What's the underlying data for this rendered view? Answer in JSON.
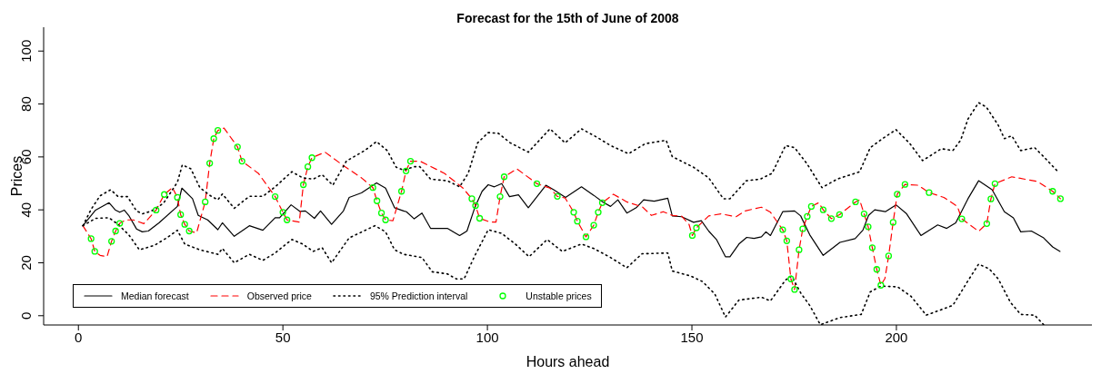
{
  "chart_data": {
    "type": "line",
    "title": "Forecast for the 15th of June of 2008",
    "xlabel": "Hours ahead",
    "ylabel": "Prices",
    "xlim": [
      -8.5,
      247.8
    ],
    "xticks": [
      0,
      50,
      100,
      150,
      200
    ],
    "ylim": [
      -3.5,
      109
    ],
    "yticks": [
      0,
      20,
      40,
      60,
      80,
      100
    ],
    "grid": false,
    "legend": "bottom left",
    "series": [
      {
        "name": "Median forecast",
        "color": "#000000",
        "line_style": "solid",
        "marker": "none",
        "x": [
          1.1,
          4.2,
          7.5,
          9.0,
          10.1,
          11.2,
          12.3,
          14.2,
          15.6,
          17.1,
          19.7,
          24.2,
          25.3,
          27.9,
          29.3,
          31.6,
          34.1,
          35.2,
          38.1,
          41.8,
          45.1,
          48.1,
          49.2,
          52.0,
          54.2,
          55.5,
          57.7,
          59.2,
          61.9,
          64.8,
          66.2,
          69.2,
          72.9,
          75.1,
          77.3,
          79.5,
          80.2,
          82.1,
          84.0,
          86.1,
          90.2,
          93.2,
          95.0,
          96.9,
          98.7,
          100.2,
          101.7,
          103.5,
          105.4,
          107.6,
          110.0,
          114.3,
          116.2,
          119.1,
          123.0,
          126.0,
          128.2,
          130.1,
          131.9,
          134.1,
          136.4,
          138.2,
          140.8,
          144.1,
          145.2,
          147.5,
          150.4,
          152.3,
          154.1,
          156.0,
          158.2,
          159.3,
          161.5,
          163.4,
          165.2,
          167.0,
          168.1,
          169.2,
          172.2,
          175.1,
          176.6,
          178.8,
          182.1,
          186.2,
          189.9,
          191.8,
          193.2,
          194.7,
          197.3,
          199.9,
          202.5,
          206.0,
          210.1,
          212.3,
          214.5,
          217.5,
          220.1,
          223.4,
          226.4,
          228.6,
          230.4,
          233.0,
          236.0,
          238.2,
          240.0
        ],
        "values": [
          34.0,
          39.9,
          42.7,
          40.0,
          39.1,
          39.9,
          37.9,
          32.8,
          31.7,
          32.0,
          35.1,
          41.3,
          48.2,
          44.2,
          37.9,
          36.2,
          32.5,
          35.1,
          30.0,
          34.0,
          32.3,
          37.0,
          37.0,
          41.9,
          39.4,
          39.6,
          36.8,
          39.6,
          34.5,
          39.6,
          44.7,
          46.4,
          50.2,
          48.2,
          40.8,
          39.6,
          39.3,
          36.6,
          38.8,
          33.0,
          33.0,
          30.3,
          32.0,
          40.8,
          47.0,
          49.5,
          48.7,
          49.9,
          45.0,
          45.7,
          40.8,
          49.3,
          47.6,
          44.7,
          48.7,
          45.5,
          43.0,
          41.3,
          43.8,
          38.8,
          40.8,
          43.8,
          43.3,
          44.4,
          37.7,
          37.4,
          35.3,
          35.9,
          32.0,
          28.8,
          22.3,
          22.3,
          27.1,
          29.6,
          29.2,
          29.8,
          31.7,
          30.3,
          39.3,
          39.6,
          37.7,
          30.6,
          22.8,
          27.7,
          29.1,
          32.3,
          37.9,
          40.0,
          39.3,
          41.9,
          38.5,
          30.3,
          34.3,
          33.0,
          35.1,
          44.2,
          51.0,
          47.6,
          39.3,
          37.0,
          31.7,
          32.0,
          29.4,
          26.0,
          24.3
        ]
      },
      {
        "name": "Observed price",
        "color": "#ff0000",
        "line_style": "dashed",
        "marker": "none",
        "x": [
          1.1,
          3.1,
          4.0,
          5.3,
          7.0,
          8.1,
          9.1,
          10.1,
          11.6,
          13.4,
          16.0,
          19.0,
          21.0,
          23.0,
          24.2,
          25.0,
          26.0,
          27.1,
          28.9,
          31.0,
          32.1,
          33.1,
          34.1,
          35.6,
          38.9,
          40.0,
          44.0,
          48.1,
          50.0,
          51.0,
          54.0,
          55.0,
          56.1,
          57.1,
          60.3,
          64.8,
          69.2,
          72.0,
          73.0,
          74.1,
          75.1,
          76.9,
          79.0,
          80.1,
          81.2,
          83.5,
          89.5,
          93.9,
          96.2,
          97.1,
          98.1,
          100.6,
          102.1,
          103.1,
          104.1,
          107.2,
          112.1,
          115.3,
          117.1,
          119.0,
          121.1,
          122.0,
          124.1,
          126.0,
          127.1,
          128.1,
          130.8,
          134.1,
          137.9,
          140.1,
          143.0,
          145.2,
          147.5,
          149.3,
          150.1,
          151.1,
          154.1,
          157.1,
          160.8,
          163.0,
          167.0,
          169.2,
          172.2,
          173.2,
          174.2,
          175.1,
          176.2,
          177.1,
          178.2,
          179.2,
          181.0,
          182.1,
          184.1,
          186.1,
          190.0,
          191.0,
          192.1,
          193.1,
          194.1,
          195.2,
          196.2,
          197.2,
          198.1,
          199.2,
          200.2,
          202.1,
          205.3,
          208.0,
          211.6,
          214.9,
          216.0,
          220.1,
          222.1,
          223.1,
          224.1,
          228.2,
          234.5,
          238.2,
          240.1
        ],
        "values": [
          34.0,
          29.1,
          24.3,
          22.8,
          22.3,
          28.1,
          32.0,
          34.9,
          36.2,
          36.2,
          34.8,
          39.9,
          45.8,
          48.4,
          44.7,
          38.2,
          34.5,
          32.0,
          31.3,
          43.0,
          57.6,
          66.9,
          70.0,
          70.9,
          63.8,
          58.4,
          53.8,
          45.0,
          39.1,
          36.2,
          35.4,
          49.5,
          56.3,
          59.7,
          61.8,
          56.7,
          52.1,
          48.4,
          43.4,
          38.8,
          36.2,
          35.9,
          47.0,
          54.7,
          58.4,
          58.4,
          53.8,
          48.4,
          44.2,
          41.6,
          36.8,
          35.4,
          35.4,
          45.0,
          52.5,
          55.5,
          49.9,
          48.2,
          45.1,
          44.5,
          39.1,
          35.7,
          29.8,
          34.2,
          39.1,
          42.7,
          45.9,
          43.0,
          41.1,
          37.9,
          39.3,
          37.9,
          37.6,
          34.5,
          30.3,
          33.2,
          37.7,
          38.5,
          37.4,
          39.6,
          41.0,
          39.1,
          32.5,
          28.3,
          13.9,
          9.9,
          24.9,
          32.8,
          37.5,
          41.3,
          42.7,
          40.0,
          36.7,
          38.2,
          43.0,
          43.8,
          38.5,
          33.6,
          25.7,
          17.5,
          11.5,
          14.1,
          22.6,
          35.3,
          45.9,
          49.6,
          49.3,
          46.5,
          44.7,
          41.3,
          36.6,
          31.9,
          34.8,
          44.1,
          49.9,
          52.5,
          50.7,
          47.0,
          44.2
        ]
      },
      {
        "name": "95% Prediction interval",
        "color": "#000000",
        "line_style": "dotted",
        "marker": "none",
        "x": [
          1.1,
          3.1,
          5.3,
          7.9,
          9.7,
          12.0,
          14.2,
          15.7,
          17.9,
          20.8,
          24.2,
          25.4,
          27.5,
          29.7,
          32.3,
          34.1,
          35.2,
          38.1,
          41.8,
          45.1,
          48.1,
          52.2,
          54.8,
          57.4,
          59.6,
          62.2,
          65.5,
          70.0,
          72.9,
          75.5,
          77.7,
          79.5,
          82.1,
          83.5,
          86.1,
          90.2,
          93.2,
          95.3,
          97.6,
          100.2,
          102.7,
          105.6,
          110.0,
          115.3,
          119.0,
          123.0,
          126.7,
          130.1,
          134.5,
          138.6,
          143.7,
          145.2,
          150.4,
          154.1,
          157.7,
          159.3,
          163.3,
          166.7,
          169.6,
          172.9,
          175.1,
          178.1,
          181.8,
          185.5,
          191.0,
          193.6,
          196.6,
          199.9,
          203.2,
          206.4,
          211.0,
          213.8,
          215.7,
          217.5,
          220.1,
          222.0,
          224.9,
          226.4,
          228.2,
          230.4,
          233.8,
          236.0,
          239.7
        ],
        "values": [
          34.0,
          40.2,
          45.3,
          47.6,
          45.0,
          45.0,
          39.6,
          38.5,
          39.6,
          42.5,
          50.4,
          57.0,
          55.5,
          48.4,
          45.3,
          43.8,
          46.0,
          40.6,
          45.1,
          45.1,
          48.7,
          54.4,
          52.1,
          51.6,
          53.3,
          49.3,
          58.4,
          62.4,
          65.8,
          62.4,
          56.1,
          55.0,
          56.3,
          56.3,
          51.6,
          51.0,
          48.7,
          53.8,
          65.3,
          69.2,
          68.9,
          65.3,
          61.8,
          70.6,
          65.3,
          70.6,
          67.5,
          64.3,
          61.2,
          65.0,
          66.3,
          60.1,
          56.1,
          52.1,
          44.2,
          44.2,
          51.0,
          51.6,
          53.8,
          64.3,
          63.5,
          57.5,
          48.4,
          51.6,
          54.4,
          63.5,
          66.9,
          70.3,
          65.2,
          58.6,
          63.1,
          62.4,
          66.3,
          74.3,
          80.5,
          78.8,
          72.0,
          66.9,
          68.0,
          62.4,
          63.5,
          60.1,
          54.1
        ]
      },
      {
        "color": "#000000",
        "line_style": "dotted",
        "marker": "none",
        "x": [
          1.1,
          4.2,
          7.5,
          9.7,
          12.3,
          14.9,
          18.6,
          21.6,
          24.2,
          26.0,
          29.7,
          34.1,
          35.2,
          38.1,
          41.8,
          45.1,
          48.1,
          52.2,
          54.8,
          57.4,
          59.6,
          61.9,
          66.2,
          72.5,
          75.1,
          77.3,
          79.5,
          84.0,
          86.5,
          90.2,
          92.4,
          94.3,
          96.9,
          100.2,
          103.5,
          106.8,
          110.2,
          114.6,
          118.3,
          123.0,
          126.0,
          130.1,
          134.1,
          137.8,
          144.1,
          145.2,
          149.7,
          152.6,
          155.6,
          158.2,
          161.5,
          167.0,
          169.2,
          172.9,
          174.4,
          176.6,
          178.8,
          181.4,
          186.2,
          191.4,
          193.6,
          196.2,
          200.3,
          203.6,
          207.3,
          210.8,
          213.8,
          217.5,
          220.1,
          222.7,
          224.9,
          227.9,
          230.4,
          233.8,
          236.0
        ],
        "values": [
          34.0,
          36.8,
          37.0,
          34.5,
          30.6,
          24.9,
          26.6,
          29.4,
          32.3,
          27.1,
          24.9,
          23.2,
          25.4,
          20.0,
          23.2,
          20.9,
          23.7,
          28.8,
          27.1,
          24.3,
          25.7,
          20.0,
          29.4,
          34.0,
          31.7,
          24.9,
          23.2,
          22.0,
          16.6,
          15.8,
          13.9,
          13.9,
          22.6,
          32.5,
          31.1,
          27.1,
          22.3,
          28.8,
          24.3,
          27.1,
          25.4,
          22.0,
          18.1,
          23.4,
          23.7,
          16.9,
          15.0,
          12.9,
          8.2,
          -0.5,
          5.9,
          7.0,
          5.6,
          13.5,
          15.0,
          8.6,
          3.9,
          -3.4,
          -0.7,
          0.5,
          9.0,
          11.2,
          10.9,
          7.3,
          0.2,
          2.2,
          3.9,
          13.2,
          19.5,
          17.7,
          13.9,
          5.0,
          0.5,
          0.2,
          -3.4
        ]
      },
      {
        "name": "Unstable prices",
        "type": "scatter",
        "color": "#00ff00",
        "marker": "circle",
        "x": [
          3.1,
          4.0,
          8.1,
          9.1,
          10.1,
          19.0,
          21.0,
          24.2,
          25.0,
          26.0,
          27.1,
          31.0,
          32.1,
          33.1,
          34.1,
          38.9,
          40.0,
          48.1,
          50.0,
          51.0,
          55.0,
          56.1,
          57.1,
          72.0,
          73.0,
          74.1,
          75.1,
          79.0,
          80.1,
          81.2,
          96.2,
          97.1,
          98.1,
          103.1,
          104.1,
          112.1,
          117.1,
          121.1,
          122.0,
          124.1,
          126.0,
          127.1,
          128.1,
          150.1,
          151.1,
          172.2,
          173.2,
          174.2,
          175.1,
          176.2,
          177.1,
          178.2,
          179.2,
          182.1,
          184.1,
          186.1,
          190.0,
          192.1,
          193.1,
          194.1,
          195.2,
          196.2,
          198.1,
          199.2,
          200.2,
          202.1,
          208.0,
          216.0,
          222.1,
          223.1,
          224.1,
          238.2,
          240.1
        ],
        "values": [
          29.1,
          24.3,
          28.1,
          32.0,
          34.9,
          39.9,
          45.8,
          44.7,
          38.2,
          34.5,
          32.0,
          43.0,
          57.6,
          66.9,
          70.0,
          63.8,
          58.4,
          45.0,
          39.1,
          36.2,
          49.5,
          56.3,
          59.7,
          48.4,
          43.4,
          38.8,
          36.2,
          47.0,
          54.7,
          58.4,
          44.2,
          41.6,
          36.8,
          45.0,
          52.5,
          49.9,
          45.1,
          39.1,
          35.7,
          29.8,
          34.2,
          39.1,
          42.7,
          30.3,
          33.2,
          32.5,
          28.3,
          13.9,
          9.9,
          24.9,
          32.8,
          37.5,
          41.3,
          40.0,
          36.7,
          38.2,
          43.0,
          38.5,
          33.6,
          25.7,
          17.5,
          11.5,
          22.6,
          35.3,
          45.9,
          49.6,
          46.5,
          36.6,
          34.8,
          44.1,
          49.9,
          47.0,
          44.2
        ]
      }
    ]
  }
}
